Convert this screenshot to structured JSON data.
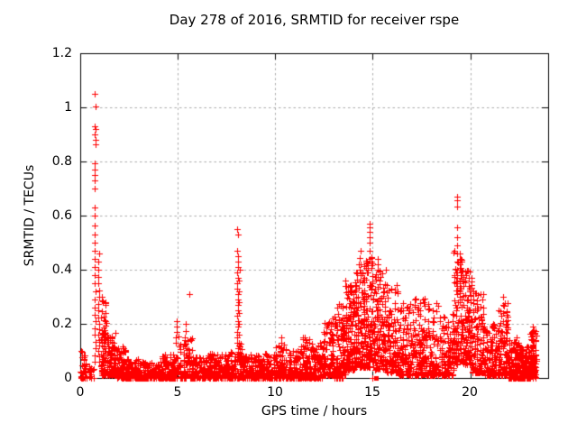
{
  "title": "Day 278 of 2016, SRMTID for receiver rspe",
  "x_axis": {
    "label": "GPS time / hours",
    "ticks": [
      "0",
      "5",
      "10",
      "15",
      "20"
    ],
    "tick_values": [
      0,
      5,
      10,
      15,
      20
    ],
    "range": [
      0,
      24
    ]
  },
  "y_axis": {
    "label": "SRMTID / TECUs",
    "ticks": [
      "0",
      "0.2",
      "0.4",
      "0.6",
      "0.8",
      "1",
      "1.2"
    ],
    "tick_values": [
      0,
      0.2,
      0.4,
      0.6,
      0.8,
      1,
      1.2
    ],
    "range": [
      0,
      1.2
    ]
  },
  "colors": {
    "points": "#ff0000",
    "grid": "#ababab",
    "axis": "#000000",
    "background": "#ffffff"
  },
  "chart_data": {
    "type": "scatter",
    "marker": "plus",
    "title": "Day 278 of 2016, SRMTID for receiver rspe",
    "xlabel": "GPS time / hours",
    "ylabel": "SRMTID / TECUs",
    "xlim": [
      0,
      24
    ],
    "ylim": [
      0,
      1.2
    ],
    "grid": "dashed",
    "legend": "none",
    "seed": 7,
    "density_profile": [
      [
        0.02,
        0.3,
        40,
        0.1,
        0,
        2.2
      ],
      [
        0.3,
        0.72,
        14,
        0.05,
        0,
        2.2
      ],
      [
        1.05,
        1.35,
        80,
        0.3,
        0.01,
        2.4
      ],
      [
        1.35,
        1.85,
        100,
        0.17,
        0.01,
        2.2
      ],
      [
        1.85,
        2.35,
        90,
        0.12,
        0,
        2.2
      ],
      [
        2.35,
        3.2,
        130,
        0.07,
        0,
        2.2
      ],
      [
        3.2,
        4.2,
        140,
        0.06,
        0,
        2.2
      ],
      [
        4.2,
        5.0,
        120,
        0.09,
        0,
        2.2
      ],
      [
        5.0,
        5.75,
        100,
        0.16,
        0,
        2.2
      ],
      [
        5.75,
        6.5,
        100,
        0.08,
        0,
        2.2
      ],
      [
        6.5,
        7.4,
        120,
        0.09,
        0,
        2.2
      ],
      [
        7.4,
        7.98,
        80,
        0.1,
        0,
        2.2
      ],
      [
        8.02,
        8.3,
        45,
        0.13,
        0,
        1.8
      ],
      [
        8.3,
        9.2,
        130,
        0.1,
        0,
        2.3
      ],
      [
        9.2,
        10.0,
        120,
        0.09,
        0,
        2.3
      ],
      [
        10.0,
        10.6,
        100,
        0.13,
        0,
        2.3
      ],
      [
        10.6,
        11.3,
        110,
        0.1,
        0,
        2.3
      ],
      [
        11.3,
        11.9,
        100,
        0.15,
        0,
        2.2
      ],
      [
        11.9,
        12.45,
        90,
        0.13,
        0,
        2.2
      ],
      [
        12.45,
        13.0,
        100,
        0.22,
        0.01,
        2.0
      ],
      [
        13.0,
        13.6,
        110,
        0.28,
        0.01,
        1.9
      ],
      [
        13.6,
        14.1,
        130,
        0.36,
        0.03,
        1.7
      ],
      [
        14.1,
        14.6,
        130,
        0.43,
        0.04,
        1.7
      ],
      [
        14.6,
        15.1,
        130,
        0.45,
        0.04,
        1.7
      ],
      [
        15.1,
        15.7,
        130,
        0.4,
        0.03,
        1.7
      ],
      [
        15.7,
        16.3,
        120,
        0.35,
        0.02,
        1.8
      ],
      [
        16.3,
        17.0,
        120,
        0.28,
        0.01,
        2.0
      ],
      [
        17.0,
        17.8,
        130,
        0.3,
        0.01,
        2.0
      ],
      [
        17.8,
        18.6,
        120,
        0.28,
        0.01,
        2.0
      ],
      [
        18.6,
        19.15,
        90,
        0.25,
        0.01,
        2.0
      ],
      [
        19.15,
        19.6,
        90,
        0.47,
        0.05,
        1.5
      ],
      [
        19.6,
        20.1,
        130,
        0.4,
        0.05,
        1.6
      ],
      [
        20.1,
        20.7,
        120,
        0.32,
        0.02,
        1.9
      ],
      [
        20.7,
        21.4,
        120,
        0.2,
        0.01,
        2.1
      ],
      [
        21.4,
        21.95,
        100,
        0.28,
        0.01,
        2.0
      ],
      [
        21.95,
        22.55,
        140,
        0.15,
        0,
        2.3
      ],
      [
        22.55,
        23.05,
        140,
        0.12,
        0,
        2.3
      ],
      [
        23.05,
        23.4,
        90,
        0.18,
        0,
        2.0
      ]
    ],
    "spike_columns": [
      {
        "t": 0.02,
        "values": [
          0.13
        ]
      },
      {
        "t": 0.75,
        "values": [
          1.05,
          1.005,
          0.93,
          0.92,
          0.9,
          0.88,
          0.865,
          0.795,
          0.77,
          0.75,
          0.73,
          0.7,
          0.63,
          0.6,
          0.565,
          0.53,
          0.5,
          0.47,
          0.44,
          0.41,
          0.38,
          0.35,
          0.32,
          0.29,
          0.26,
          0.235,
          0.21,
          0.185,
          0.16,
          0.135,
          0.11,
          0.085,
          0.06
        ]
      },
      {
        "t": 0.95,
        "values": [
          0.46,
          0.43,
          0.4,
          0.375,
          0.35,
          0.325,
          0.3,
          0.275,
          0.25,
          0.225,
          0.2,
          0.18,
          0.16,
          0.14,
          0.12,
          0.1,
          0.08,
          0.06
        ]
      },
      {
        "t": 4.93,
        "values": [
          0.21,
          0.19,
          0.17,
          0.15,
          0.13
        ]
      },
      {
        "t": 5.38,
        "values": [
          0.2,
          0.175,
          0.15,
          0.125
        ]
      },
      {
        "t": 5.58,
        "values": [
          0.31
        ]
      },
      {
        "t": 8.08,
        "values": [
          0.55,
          0.53,
          0.47,
          0.45,
          0.43,
          0.41,
          0.39,
          0.37,
          0.35,
          0.33,
          0.31,
          0.29,
          0.27,
          0.25,
          0.23,
          0.21,
          0.19,
          0.17,
          0.15,
          0.13,
          0.11,
          0.09
        ]
      },
      {
        "t": 8.16,
        "values": [
          0.4,
          0.36,
          0.32,
          0.28,
          0.24,
          0.2,
          0.16,
          0.12,
          0.08
        ]
      },
      {
        "t": 10.32,
        "values": [
          0.15,
          0.13,
          0.11
        ]
      },
      {
        "t": 14.35,
        "values": [
          0.47,
          0.445,
          0.42,
          0.4,
          0.38
        ]
      },
      {
        "t": 14.85,
        "values": [
          0.57,
          0.555,
          0.54,
          0.52,
          0.5,
          0.47,
          0.44
        ]
      },
      {
        "t": 15.25,
        "values": [
          0.44,
          0.42,
          0.4
        ]
      },
      {
        "t": 19.33,
        "values": [
          0.67,
          0.655,
          0.635,
          0.555,
          0.52,
          0.49,
          0.46,
          0.43,
          0.4,
          0.37,
          0.34,
          0.31
        ]
      },
      {
        "t": 19.47,
        "values": [
          0.46,
          0.44,
          0.42,
          0.4,
          0.38,
          0.36,
          0.34,
          0.32,
          0.3,
          0.28
        ]
      },
      {
        "t": 21.68,
        "values": [
          0.3,
          0.27,
          0.24,
          0.21
        ]
      },
      {
        "t": 23.2,
        "values": [
          0.19,
          0.165,
          0.14
        ]
      }
    ],
    "zero_points": [
      0.25,
      0.32,
      8.45,
      13.05,
      13.12,
      13.18,
      13.25,
      13.32,
      13.4,
      13.47,
      15.0
    ],
    "zero_squares": [
      0.1,
      8.28,
      12.15,
      15.18
    ]
  }
}
